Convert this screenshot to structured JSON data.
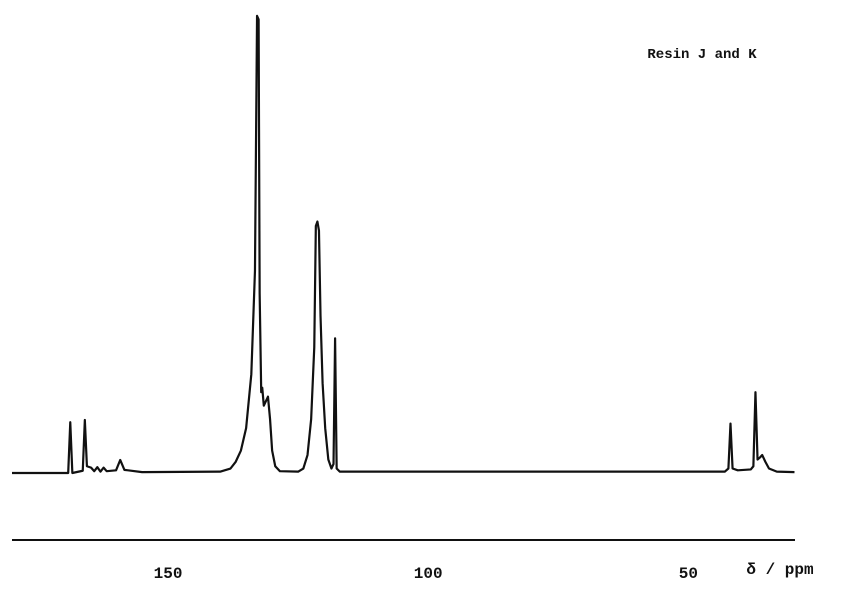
{
  "chart_data": {
    "type": "line",
    "title": "Resin J and K",
    "x_label": "δ / ppm",
    "color": "#111111",
    "xlim": [
      180,
      29.5
    ],
    "xticks": [
      150,
      100,
      50
    ],
    "ylim": [
      0,
      102
    ],
    "x": [
      180,
      169.2,
      168.8,
      168.4,
      166.4,
      166.0,
      165.6,
      164.8,
      164.2,
      163.6,
      163.0,
      162.4,
      161.8,
      160.0,
      159.2,
      158.4,
      155,
      140,
      138,
      137,
      136,
      135,
      134,
      133.3,
      132.9,
      132.6,
      132.4,
      132.1,
      131.9,
      131.6,
      131.2,
      130.8,
      130.4,
      130,
      129.4,
      128.5,
      125,
      124,
      123.2,
      122.5,
      121.9,
      121.6,
      121.3,
      121.0,
      120.7,
      120.3,
      119.8,
      119.2,
      118.6,
      118.2,
      117.9,
      117.6,
      117,
      60,
      43,
      42.3,
      41.9,
      41.5,
      40.5,
      38,
      37.5,
      37.1,
      36.7,
      36.2,
      35.8,
      35.2,
      34.5,
      33,
      29.6
    ],
    "values": [
      0,
      0,
      11.3,
      0,
      0.5,
      11.8,
      1.5,
      1.2,
      0.4,
      1.3,
      0.3,
      1.2,
      0.4,
      0.6,
      2.9,
      0.7,
      0.2,
      0.3,
      1,
      2.5,
      5,
      10,
      22,
      45,
      101.8,
      101,
      40,
      18,
      19,
      15,
      16,
      17,
      12,
      5,
      1.5,
      0.4,
      0.3,
      1,
      4,
      12,
      28,
      55,
      56,
      54,
      35,
      20,
      10,
      3,
      1,
      2,
      30,
      1,
      0.3,
      0.3,
      0.3,
      1,
      11,
      1,
      0.6,
      0.8,
      1.5,
      18,
      3,
      3.5,
      4,
      2.5,
      1,
      0.3,
      0.2
    ]
  }
}
